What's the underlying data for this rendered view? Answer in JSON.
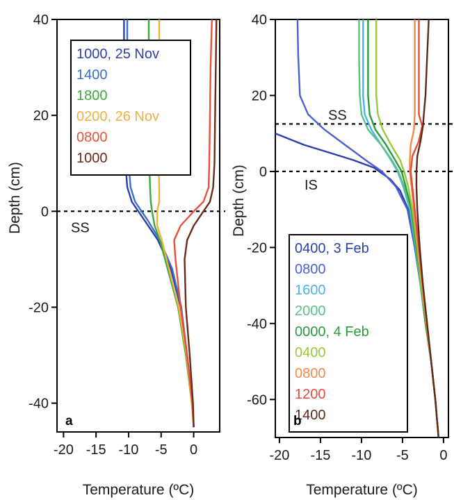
{
  "chart_data": [
    {
      "panel_label": "a",
      "type": "line",
      "xlabel": "Temperature (ºC)",
      "ylabel": "Depth (cm)",
      "xlim": [
        -21,
        4
      ],
      "ylim": [
        -46,
        40
      ],
      "xticks": [
        -20,
        -15,
        -10,
        -5,
        0
      ],
      "yticks": [
        -40,
        -20,
        0,
        20,
        40
      ],
      "grid": false,
      "legend_position": "top-left",
      "reference_lines": [
        {
          "label": "SS",
          "depth": 0
        }
      ],
      "series": [
        {
          "name": "1000, 25 Nov",
          "color": "#2b3fa8",
          "points": [
            [
              -10.7,
              40
            ],
            [
              -10.7,
              30
            ],
            [
              -10.6,
              20
            ],
            [
              -10.5,
              10
            ],
            [
              -10.2,
              5
            ],
            [
              -9.5,
              2
            ],
            [
              -8.5,
              0
            ],
            [
              -7.5,
              -2
            ],
            [
              -5.5,
              -6
            ],
            [
              -3.5,
              -12
            ],
            [
              -2.0,
              -20
            ],
            [
              -1.0,
              -30
            ],
            [
              -0.2,
              -40
            ],
            [
              0.0,
              -45
            ]
          ]
        },
        {
          "name": "1400",
          "color": "#3a6ec8",
          "points": [
            [
              -10.2,
              40
            ],
            [
              -10.2,
              30
            ],
            [
              -10.1,
              20
            ],
            [
              -10.0,
              10
            ],
            [
              -9.7,
              5
            ],
            [
              -9.0,
              2
            ],
            [
              -8.0,
              0
            ],
            [
              -7.0,
              -2
            ],
            [
              -5.2,
              -6
            ],
            [
              -3.3,
              -12
            ],
            [
              -1.9,
              -20
            ],
            [
              -1.0,
              -30
            ],
            [
              -0.2,
              -40
            ],
            [
              0.0,
              -45
            ]
          ]
        },
        {
          "name": "1800",
          "color": "#3aaa3a",
          "points": [
            [
              -6.9,
              40
            ],
            [
              -6.9,
              30
            ],
            [
              -6.9,
              20
            ],
            [
              -6.8,
              10
            ],
            [
              -6.7,
              5
            ],
            [
              -6.6,
              2
            ],
            [
              -6.4,
              0
            ],
            [
              -6.0,
              -3
            ],
            [
              -5.2,
              -6
            ],
            [
              -4.0,
              -12
            ],
            [
              -2.4,
              -20
            ],
            [
              -1.2,
              -30
            ],
            [
              -0.3,
              -40
            ],
            [
              0.0,
              -45
            ]
          ]
        },
        {
          "name": "0200, 26 Nov",
          "color": "#f0b040",
          "points": [
            [
              -5.3,
              40
            ],
            [
              -5.3,
              30
            ],
            [
              -5.4,
              20
            ],
            [
              -5.4,
              10
            ],
            [
              -5.3,
              5
            ],
            [
              -5.3,
              2
            ],
            [
              -5.6,
              0
            ],
            [
              -5.6,
              -3
            ],
            [
              -4.9,
              -6
            ],
            [
              -3.8,
              -12
            ],
            [
              -2.3,
              -20
            ],
            [
              -1.1,
              -30
            ],
            [
              -0.3,
              -40
            ],
            [
              0.0,
              -45
            ]
          ]
        },
        {
          "name": "0800",
          "color": "#e8503a",
          "points": [
            [
              2.8,
              40
            ],
            [
              2.6,
              30
            ],
            [
              2.5,
              20
            ],
            [
              2.4,
              10
            ],
            [
              2.3,
              5
            ],
            [
              1.5,
              2
            ],
            [
              0.0,
              0
            ],
            [
              -2.0,
              -3
            ],
            [
              -3.0,
              -6
            ],
            [
              -2.8,
              -10
            ],
            [
              -2.0,
              -20
            ],
            [
              -1.0,
              -30
            ],
            [
              -0.2,
              -40
            ],
            [
              0.0,
              -45
            ]
          ]
        },
        {
          "name": "1000",
          "color": "#6a2a1a",
          "points": [
            [
              3.5,
              40
            ],
            [
              3.4,
              30
            ],
            [
              3.3,
              20
            ],
            [
              3.2,
              10
            ],
            [
              3.0,
              5
            ],
            [
              2.5,
              2
            ],
            [
              1.5,
              0
            ],
            [
              0.0,
              -3
            ],
            [
              -1.0,
              -6
            ],
            [
              -1.4,
              -10
            ],
            [
              -1.2,
              -20
            ],
            [
              -0.6,
              -30
            ],
            [
              -0.1,
              -40
            ],
            [
              0.0,
              -45
            ]
          ]
        }
      ]
    },
    {
      "panel_label": "b",
      "type": "line",
      "xlabel": "Temperature (ºC)",
      "ylabel": "Depth (cm)",
      "xlim": [
        -20.5,
        0.6
      ],
      "ylim": [
        -70,
        40
      ],
      "xticks": [
        -20,
        -15,
        -10,
        -5,
        0
      ],
      "yticks": [
        -60,
        -40,
        -20,
        0,
        20,
        40
      ],
      "grid": false,
      "legend_position": "bottom-left",
      "reference_lines": [
        {
          "label": "SS",
          "depth": 12.5
        },
        {
          "label": "IS",
          "depth": 0
        }
      ],
      "series": [
        {
          "name": "0400, 3 Feb",
          "color": "#2b3fa8",
          "points": [
            [
              -20.5,
              10
            ],
            [
              -17,
              7
            ],
            [
              -14,
              5
            ],
            [
              -11,
              3
            ],
            [
              -8.5,
              1
            ],
            [
              -6.5,
              -2
            ],
            [
              -5.3,
              -5
            ],
            [
              -4.3,
              -10
            ],
            [
              -3.5,
              -20
            ],
            [
              -2.8,
              -30
            ],
            [
              -2.2,
              -40
            ],
            [
              -1.5,
              -50
            ],
            [
              -1.0,
              -60
            ],
            [
              -0.6,
              -70
            ]
          ]
        },
        {
          "name": "0800",
          "color": "#4a60d0",
          "points": [
            [
              -17.8,
              40
            ],
            [
              -17.7,
              30
            ],
            [
              -17.5,
              20
            ],
            [
              -16.5,
              15
            ],
            [
              -14.5,
              11
            ],
            [
              -12,
              7
            ],
            [
              -9.5,
              3
            ],
            [
              -7.5,
              0
            ],
            [
              -5.8,
              -4
            ],
            [
              -4.4,
              -10
            ],
            [
              -3.5,
              -20
            ],
            [
              -2.8,
              -30
            ],
            [
              -2.2,
              -40
            ],
            [
              -1.5,
              -50
            ],
            [
              -1.0,
              -60
            ],
            [
              -0.6,
              -70
            ]
          ]
        },
        {
          "name": "1600",
          "color": "#49b3e8",
          "points": [
            [
              -9.8,
              40
            ],
            [
              -9.8,
              30
            ],
            [
              -9.8,
              20
            ],
            [
              -9.6,
              15
            ],
            [
              -8.8,
              11
            ],
            [
              -7.6,
              7
            ],
            [
              -6.4,
              3
            ],
            [
              -5.6,
              0
            ],
            [
              -4.9,
              -4
            ],
            [
              -4.1,
              -10
            ],
            [
              -3.4,
              -20
            ],
            [
              -2.8,
              -30
            ],
            [
              -2.2,
              -40
            ],
            [
              -1.5,
              -50
            ],
            [
              -1.0,
              -60
            ],
            [
              -0.6,
              -70
            ]
          ]
        },
        {
          "name": "2000",
          "color": "#5cc08a",
          "points": [
            [
              -10.3,
              40
            ],
            [
              -10.3,
              30
            ],
            [
              -10.2,
              20
            ],
            [
              -10.0,
              15
            ],
            [
              -9.2,
              11
            ],
            [
              -7.6,
              7
            ],
            [
              -6.3,
              3
            ],
            [
              -5.5,
              0
            ],
            [
              -4.8,
              -4
            ],
            [
              -4.0,
              -10
            ],
            [
              -3.4,
              -20
            ],
            [
              -2.8,
              -30
            ],
            [
              -2.2,
              -40
            ],
            [
              -1.5,
              -50
            ],
            [
              -1.0,
              -60
            ],
            [
              -0.6,
              -70
            ]
          ]
        },
        {
          "name": "0000, 4 Feb",
          "color": "#2a9a3a",
          "points": [
            [
              -9.2,
              40
            ],
            [
              -9.2,
              30
            ],
            [
              -9.2,
              20
            ],
            [
              -9.0,
              15
            ],
            [
              -8.3,
              11
            ],
            [
              -7.0,
              7
            ],
            [
              -5.9,
              3
            ],
            [
              -5.1,
              0
            ],
            [
              -4.6,
              -4
            ],
            [
              -3.9,
              -10
            ],
            [
              -3.3,
              -20
            ],
            [
              -2.7,
              -30
            ],
            [
              -2.2,
              -40
            ],
            [
              -1.5,
              -50
            ],
            [
              -1.0,
              -60
            ],
            [
              -0.6,
              -70
            ]
          ]
        },
        {
          "name": "0400",
          "color": "#9ac83a",
          "points": [
            [
              -8.2,
              40
            ],
            [
              -8.2,
              30
            ],
            [
              -8.2,
              20
            ],
            [
              -8.0,
              15
            ],
            [
              -7.4,
              11
            ],
            [
              -6.4,
              7
            ],
            [
              -5.3,
              3
            ],
            [
              -4.8,
              0
            ],
            [
              -4.3,
              -4
            ],
            [
              -3.8,
              -10
            ],
            [
              -3.2,
              -20
            ],
            [
              -2.7,
              -30
            ],
            [
              -2.1,
              -40
            ],
            [
              -1.5,
              -50
            ],
            [
              -1.0,
              -60
            ],
            [
              -0.6,
              -70
            ]
          ]
        },
        {
          "name": "0800",
          "color": "#f08a4a",
          "points": [
            [
              -3.5,
              40
            ],
            [
              -3.5,
              30
            ],
            [
              -3.5,
              20
            ],
            [
              -3.5,
              15
            ],
            [
              -3.6,
              11
            ],
            [
              -4.0,
              7
            ],
            [
              -4.1,
              3
            ],
            [
              -4.1,
              0
            ],
            [
              -3.9,
              -4
            ],
            [
              -3.6,
              -10
            ],
            [
              -3.1,
              -20
            ],
            [
              -2.6,
              -30
            ],
            [
              -2.1,
              -40
            ],
            [
              -1.5,
              -50
            ],
            [
              -1.0,
              -60
            ],
            [
              -0.6,
              -70
            ]
          ]
        },
        {
          "name": "1200",
          "color": "#e84a3a",
          "points": [
            [
              -3.0,
              40
            ],
            [
              -3.0,
              30
            ],
            [
              -3.0,
              20
            ],
            [
              -3.0,
              15
            ],
            [
              -2.6,
              12
            ],
            [
              -3.0,
              8
            ],
            [
              -3.8,
              4
            ],
            [
              -4.0,
              0
            ],
            [
              -3.8,
              -4
            ],
            [
              -3.5,
              -10
            ],
            [
              -3.0,
              -20
            ],
            [
              -2.5,
              -30
            ],
            [
              -2.0,
              -40
            ],
            [
              -1.5,
              -50
            ],
            [
              -1.0,
              -60
            ],
            [
              -0.6,
              -70
            ]
          ]
        },
        {
          "name": "1400",
          "color": "#5a2a1a",
          "points": [
            [
              -1.8,
              40
            ],
            [
              -2.0,
              30
            ],
            [
              -2.2,
              20
            ],
            [
              -2.4,
              15
            ],
            [
              -2.5,
              12
            ],
            [
              -2.8,
              8
            ],
            [
              -3.2,
              4
            ],
            [
              -3.3,
              0
            ],
            [
              -3.3,
              -4
            ],
            [
              -3.2,
              -10
            ],
            [
              -2.9,
              -20
            ],
            [
              -2.5,
              -30
            ],
            [
              -2.0,
              -40
            ],
            [
              -1.5,
              -50
            ],
            [
              -1.0,
              -60
            ],
            [
              -0.6,
              -70
            ]
          ]
        }
      ]
    }
  ]
}
